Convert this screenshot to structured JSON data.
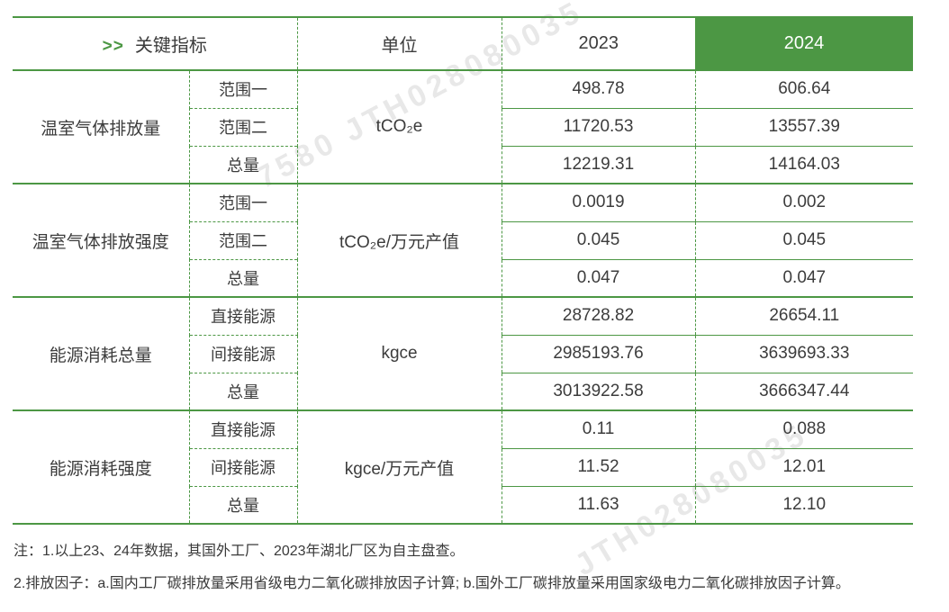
{
  "header": {
    "prefix": ">>",
    "indicator": "关键指标",
    "unit": "单位",
    "year_2023": "2023",
    "year_2024": "2024"
  },
  "colors": {
    "accent_green": "#4C9744",
    "text": "#3C3C3C",
    "header_2024_text": "#FFFFFF",
    "watermark": "#E8E8E8"
  },
  "groups": [
    {
      "label": "温室气体排放量",
      "unit": "tCO₂e",
      "rows": [
        {
          "label": "范围一",
          "y2023": "498.78",
          "y2024": "606.64"
        },
        {
          "label": "范围二",
          "y2023": "11720.53",
          "y2024": "13557.39"
        },
        {
          "label": "总量",
          "y2023": "12219.31",
          "y2024": "14164.03"
        }
      ]
    },
    {
      "label": "温室气体排放强度",
      "unit": "tCO₂e/万元产值",
      "rows": [
        {
          "label": "范围一",
          "y2023": "0.0019",
          "y2024": "0.002"
        },
        {
          "label": "范围二",
          "y2023": "0.045",
          "y2024": "0.045"
        },
        {
          "label": "总量",
          "y2023": "0.047",
          "y2024": "0.047"
        }
      ]
    },
    {
      "label": "能源消耗总量",
      "unit": "kgce",
      "rows": [
        {
          "label": "直接能源",
          "y2023": "28728.82",
          "y2024": "26654.11"
        },
        {
          "label": "间接能源",
          "y2023": "2985193.76",
          "y2024": "3639693.33"
        },
        {
          "label": "总量",
          "y2023": "3013922.58",
          "y2024": "3666347.44"
        }
      ]
    },
    {
      "label": "能源消耗强度",
      "unit": "kgce/万元产值",
      "rows": [
        {
          "label": "直接能源",
          "y2023": "0.11",
          "y2024": "0.088"
        },
        {
          "label": "间接能源",
          "y2023": "11.52",
          "y2024": "12.01"
        },
        {
          "label": "总量",
          "y2023": "11.63",
          "y2024": "12.10"
        }
      ]
    }
  ],
  "notes": [
    "注：1.以上23、24年数据，其国外工厂、2023年湖北厂区为自主盘查。",
    "2.排放因子：a.国内工厂碳排放量采用省级电力二氧化碳排放因子计算; b.国外工厂碳排放量采用国家级电力二氧化碳排放因子计算。"
  ],
  "watermarks": [
    {
      "text": "7580 JTH028080035"
    },
    {
      "text": "JTH028080035"
    }
  ]
}
